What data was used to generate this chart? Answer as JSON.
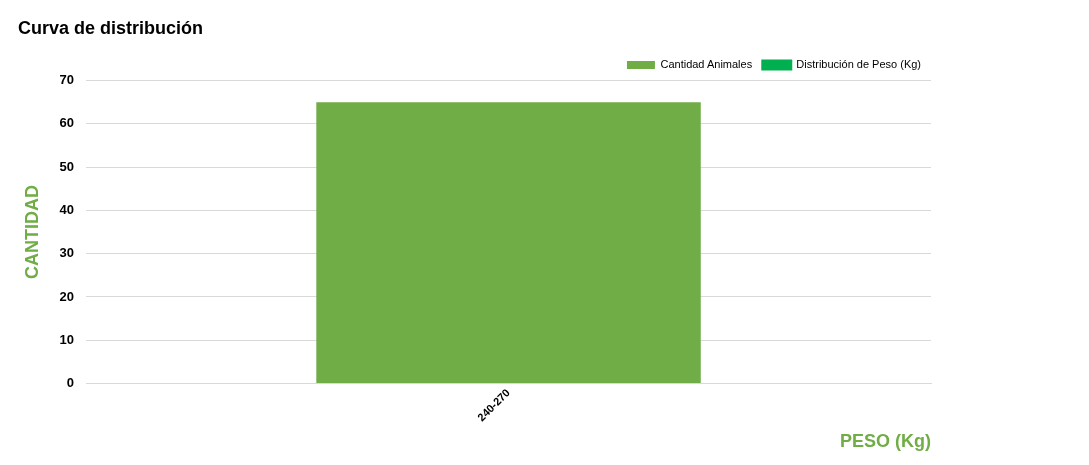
{
  "chart_data": {
    "type": "bar",
    "title": "Curva de distribución",
    "xlabel": "PESO (Kg)",
    "ylabel": "CANTIDAD",
    "categories": [
      "240-270"
    ],
    "series": [
      {
        "name": "Cantidad Animales",
        "color": "#70ad47",
        "values": [
          65
        ]
      },
      {
        "name": "Distribución de Peso (Kg)",
        "type": "line",
        "color": "#00b050",
        "values": [
          null
        ]
      }
    ],
    "ylim": [
      0,
      70
    ],
    "yticks": [
      0,
      10,
      20,
      30,
      40,
      50,
      60,
      70
    ],
    "grid": "y",
    "legend": "top right"
  }
}
